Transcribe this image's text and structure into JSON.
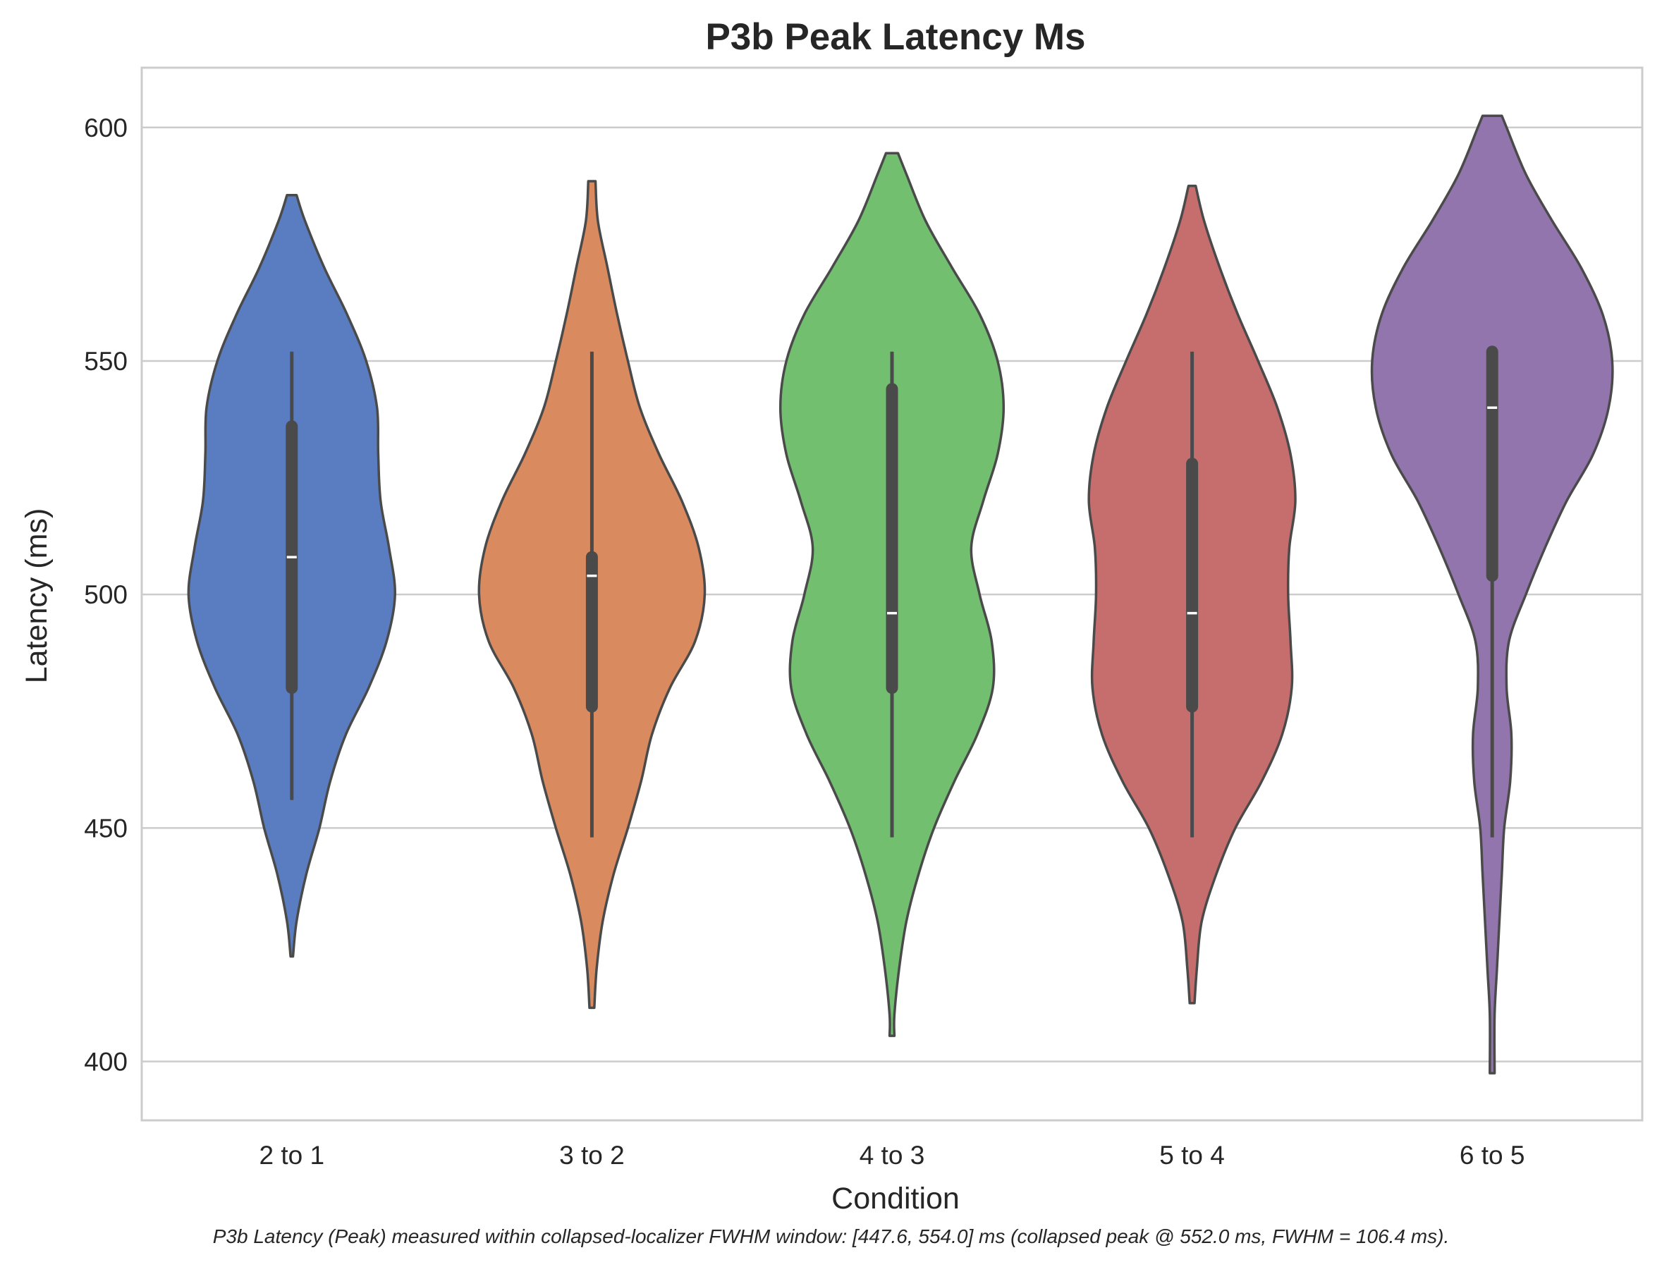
{
  "chart_data": {
    "type": "violin",
    "title": "P3b Peak Latency Ms",
    "xlabel": "Condition",
    "ylabel": "Latency (ms)",
    "categories": [
      "2 to 1",
      "3 to 2",
      "4 to 3",
      "5 to 4",
      "6 to 5"
    ],
    "ylim": [
      387.4,
      612.8
    ],
    "yticks": [
      400,
      450,
      500,
      550,
      600
    ],
    "grid": "horizontal",
    "colors": [
      "#5a7dc1",
      "#d98a5f",
      "#73bf70",
      "#c66d6d",
      "#9375ae"
    ],
    "outline_color": "#4a4a4a",
    "violins": [
      {
        "category": "2 to 1",
        "color": "#5a7dc1",
        "median": 508,
        "q1": 480,
        "q3": 536,
        "whisker_low": 456,
        "whisker_high": 552,
        "density_min": 422.5,
        "density_max": 585.5,
        "half_width_profile": [
          [
            585.5,
            0.04
          ],
          [
            580,
            0.11
          ],
          [
            570,
            0.27
          ],
          [
            560,
            0.46
          ],
          [
            550,
            0.62
          ],
          [
            540,
            0.71
          ],
          [
            530,
            0.72
          ],
          [
            520,
            0.74
          ],
          [
            510,
            0.81
          ],
          [
            500,
            0.86
          ],
          [
            490,
            0.79
          ],
          [
            480,
            0.64
          ],
          [
            470,
            0.45
          ],
          [
            460,
            0.32
          ],
          [
            450,
            0.23
          ],
          [
            440,
            0.12
          ],
          [
            430,
            0.04
          ],
          [
            422.5,
            0.01
          ]
        ]
      },
      {
        "category": "3 to 2",
        "color": "#d98a5f",
        "median": 504,
        "q1": 476,
        "q3": 508,
        "whisker_low": 448,
        "whisker_high": 552,
        "density_min": 411.5,
        "density_max": 588.5,
        "half_width_profile": [
          [
            588.5,
            0.03
          ],
          [
            580,
            0.05
          ],
          [
            570,
            0.13
          ],
          [
            560,
            0.21
          ],
          [
            550,
            0.3
          ],
          [
            540,
            0.4
          ],
          [
            530,
            0.56
          ],
          [
            520,
            0.75
          ],
          [
            510,
            0.89
          ],
          [
            500,
            0.94
          ],
          [
            490,
            0.86
          ],
          [
            480,
            0.65
          ],
          [
            470,
            0.5
          ],
          [
            460,
            0.41
          ],
          [
            450,
            0.3
          ],
          [
            440,
            0.18
          ],
          [
            430,
            0.09
          ],
          [
            420,
            0.04
          ],
          [
            411.5,
            0.02
          ]
        ]
      },
      {
        "category": "4 to 3",
        "color": "#73bf70",
        "median": 496,
        "q1": 480,
        "q3": 544,
        "whisker_low": 448,
        "whisker_high": 552,
        "density_min": 405.5,
        "density_max": 594.5,
        "half_width_profile": [
          [
            594.5,
            0.05
          ],
          [
            590,
            0.12
          ],
          [
            580,
            0.28
          ],
          [
            570,
            0.5
          ],
          [
            560,
            0.73
          ],
          [
            550,
            0.88
          ],
          [
            540,
            0.93
          ],
          [
            530,
            0.88
          ],
          [
            520,
            0.76
          ],
          [
            510,
            0.66
          ],
          [
            500,
            0.73
          ],
          [
            490,
            0.83
          ],
          [
            480,
            0.84
          ],
          [
            470,
            0.71
          ],
          [
            460,
            0.52
          ],
          [
            450,
            0.35
          ],
          [
            440,
            0.22
          ],
          [
            430,
            0.12
          ],
          [
            420,
            0.06
          ],
          [
            410,
            0.02
          ],
          [
            405.5,
            0.02
          ]
        ]
      },
      {
        "category": "5 to 4",
        "color": "#c66d6d",
        "median": 496,
        "q1": 476,
        "q3": 528,
        "whisker_low": 448,
        "whisker_high": 552,
        "density_min": 412.5,
        "density_max": 587.5,
        "half_width_profile": [
          [
            587.5,
            0.03
          ],
          [
            580,
            0.1
          ],
          [
            570,
            0.23
          ],
          [
            560,
            0.38
          ],
          [
            550,
            0.55
          ],
          [
            540,
            0.71
          ],
          [
            530,
            0.82
          ],
          [
            520,
            0.86
          ],
          [
            510,
            0.81
          ],
          [
            500,
            0.8
          ],
          [
            490,
            0.82
          ],
          [
            480,
            0.83
          ],
          [
            470,
            0.75
          ],
          [
            460,
            0.58
          ],
          [
            450,
            0.36
          ],
          [
            440,
            0.2
          ],
          [
            430,
            0.08
          ],
          [
            420,
            0.04
          ],
          [
            412.5,
            0.02
          ]
        ]
      },
      {
        "category": "6 to 5",
        "color": "#9375ae",
        "median": 540,
        "q1": 504,
        "q3": 552,
        "whisker_low": 448,
        "whisker_high": 552,
        "density_min": 397.5,
        "density_max": 602.5,
        "half_width_profile": [
          [
            602.5,
            0.08
          ],
          [
            600,
            0.12
          ],
          [
            590,
            0.28
          ],
          [
            580,
            0.5
          ],
          [
            570,
            0.74
          ],
          [
            560,
            0.92
          ],
          [
            550,
            1.0
          ],
          [
            540,
            0.97
          ],
          [
            530,
            0.84
          ],
          [
            520,
            0.62
          ],
          [
            510,
            0.44
          ],
          [
            500,
            0.28
          ],
          [
            490,
            0.14
          ],
          [
            480,
            0.12
          ],
          [
            470,
            0.16
          ],
          [
            460,
            0.15
          ],
          [
            450,
            0.1
          ],
          [
            440,
            0.08
          ],
          [
            430,
            0.06
          ],
          [
            420,
            0.04
          ],
          [
            410,
            0.02
          ],
          [
            397.5,
            0.02
          ]
        ]
      }
    ]
  },
  "caption": "P3b Latency (Peak) measured within collapsed-localizer FWHM window: [447.6, 554.0] ms (collapsed peak @ 552.0 ms, FWHM = 106.4 ms)."
}
